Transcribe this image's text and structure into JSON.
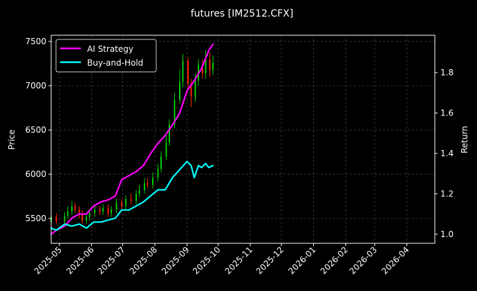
{
  "chart_data": {
    "type": "line",
    "title": "futures [IM2512.CFX]",
    "ylabel_left": "Price",
    "ylabel_right": "Return",
    "grid": true,
    "legend_position": "upper-left",
    "x_range": [
      "2025-04-23",
      "2026-04-28"
    ],
    "x_ticks": [
      "2025-05",
      "2025-06",
      "2025-07",
      "2025-08",
      "2025-09",
      "2025-10",
      "2025-11",
      "2025-12",
      "2026-01",
      "2026-02",
      "2026-03",
      "2026-04"
    ],
    "price_axis": {
      "ylim": [
        5220,
        7570
      ],
      "ticks": [
        5500,
        6000,
        6500,
        7000,
        7500
      ]
    },
    "return_axis": {
      "ylim": [
        0.955,
        1.985
      ],
      "ticks": [
        1.0,
        1.2,
        1.4,
        1.6,
        1.8
      ]
    },
    "colors": {
      "ai": "#ff00ff",
      "bh": "#00ffff",
      "up": "#00cc00",
      "down": "#ff2200",
      "grid": "#555555",
      "background": "#000000"
    },
    "series": [
      {
        "name": "AI Strategy",
        "axis": "return",
        "x": [
          "2025-04-23",
          "2025-04-28",
          "2025-05-06",
          "2025-05-13",
          "2025-05-20",
          "2025-05-27",
          "2025-06-03",
          "2025-06-10",
          "2025-06-17",
          "2025-06-24",
          "2025-06-30",
          "2025-07-07",
          "2025-07-14",
          "2025-07-21",
          "2025-07-28",
          "2025-08-04",
          "2025-08-11",
          "2025-08-18",
          "2025-08-25",
          "2025-09-01",
          "2025-09-08",
          "2025-09-15",
          "2025-09-22",
          "2025-09-26"
        ],
        "values": [
          1.0,
          1.02,
          1.04,
          1.08,
          1.1,
          1.1,
          1.14,
          1.16,
          1.17,
          1.19,
          1.27,
          1.29,
          1.31,
          1.34,
          1.4,
          1.45,
          1.49,
          1.54,
          1.6,
          1.71,
          1.76,
          1.82,
          1.91,
          1.94
        ]
      },
      {
        "name": "Buy-and-Hold",
        "axis": "return",
        "x": [
          "2025-04-23",
          "2025-04-28",
          "2025-05-06",
          "2025-05-13",
          "2025-05-20",
          "2025-05-27",
          "2025-06-03",
          "2025-06-10",
          "2025-06-17",
          "2025-06-24",
          "2025-06-30",
          "2025-07-07",
          "2025-07-14",
          "2025-07-21",
          "2025-07-28",
          "2025-08-04",
          "2025-08-11",
          "2025-08-18",
          "2025-08-25",
          "2025-09-01",
          "2025-09-05",
          "2025-09-08",
          "2025-09-12",
          "2025-09-15",
          "2025-09-19",
          "2025-09-22",
          "2025-09-26"
        ],
        "values": [
          1.03,
          1.02,
          1.05,
          1.04,
          1.05,
          1.03,
          1.06,
          1.06,
          1.07,
          1.08,
          1.12,
          1.12,
          1.14,
          1.16,
          1.19,
          1.22,
          1.22,
          1.28,
          1.32,
          1.36,
          1.34,
          1.28,
          1.34,
          1.33,
          1.35,
          1.33,
          1.34
        ]
      }
    ],
    "candles": [
      [
        "2025-04-23",
        5460,
        5520,
        5560,
        5420
      ],
      [
        "2025-04-28",
        5520,
        5470,
        5560,
        5440
      ],
      [
        "2025-05-06",
        5470,
        5530,
        5570,
        5440
      ],
      [
        "2025-05-09",
        5530,
        5580,
        5640,
        5500
      ],
      [
        "2025-05-13",
        5580,
        5640,
        5700,
        5540
      ],
      [
        "2025-05-16",
        5640,
        5600,
        5680,
        5560
      ],
      [
        "2025-05-20",
        5600,
        5560,
        5640,
        5500
      ],
      [
        "2025-05-23",
        5560,
        5480,
        5600,
        5440
      ],
      [
        "2025-05-27",
        5480,
        5520,
        5560,
        5440
      ],
      [
        "2025-05-30",
        5520,
        5560,
        5600,
        5480
      ],
      [
        "2025-06-04",
        5560,
        5600,
        5640,
        5520
      ],
      [
        "2025-06-09",
        5600,
        5580,
        5640,
        5540
      ],
      [
        "2025-06-12",
        5580,
        5620,
        5660,
        5540
      ],
      [
        "2025-06-17",
        5620,
        5560,
        5660,
        5520
      ],
      [
        "2025-06-20",
        5560,
        5600,
        5640,
        5520
      ],
      [
        "2025-06-25",
        5600,
        5680,
        5720,
        5560
      ],
      [
        "2025-06-30",
        5680,
        5640,
        5720,
        5600
      ],
      [
        "2025-07-04",
        5640,
        5720,
        5760,
        5600
      ],
      [
        "2025-07-09",
        5720,
        5700,
        5780,
        5660
      ],
      [
        "2025-07-14",
        5700,
        5780,
        5820,
        5660
      ],
      [
        "2025-07-17",
        5780,
        5820,
        5880,
        5740
      ],
      [
        "2025-07-22",
        5820,
        5900,
        5960,
        5780
      ],
      [
        "2025-07-25",
        5900,
        5880,
        5960,
        5840
      ],
      [
        "2025-07-30",
        5880,
        5960,
        6020,
        5840
      ],
      [
        "2025-08-04",
        5960,
        6060,
        6120,
        5920
      ],
      [
        "2025-08-07",
        6060,
        6200,
        6260,
        6020
      ],
      [
        "2025-08-12",
        6200,
        6360,
        6440,
        6160
      ],
      [
        "2025-08-15",
        6360,
        6560,
        6620,
        6320
      ],
      [
        "2025-08-20",
        6560,
        6840,
        6920,
        6520
      ],
      [
        "2025-08-25",
        6840,
        7040,
        7180,
        6800
      ],
      [
        "2025-08-28",
        7040,
        7280,
        7360,
        6980
      ],
      [
        "2025-09-02",
        7280,
        7020,
        7320,
        6960
      ],
      [
        "2025-09-05",
        7020,
        6880,
        7080,
        6760
      ],
      [
        "2025-09-09",
        6880,
        7060,
        7140,
        6820
      ],
      [
        "2025-09-12",
        7060,
        7240,
        7300,
        7000
      ],
      [
        "2025-09-16",
        7240,
        7140,
        7300,
        7080
      ],
      [
        "2025-09-19",
        7140,
        7300,
        7400,
        7080
      ],
      [
        "2025-09-23",
        7300,
        7180,
        7380,
        7100
      ],
      [
        "2025-09-26",
        7180,
        7260,
        7340,
        7120
      ]
    ]
  }
}
